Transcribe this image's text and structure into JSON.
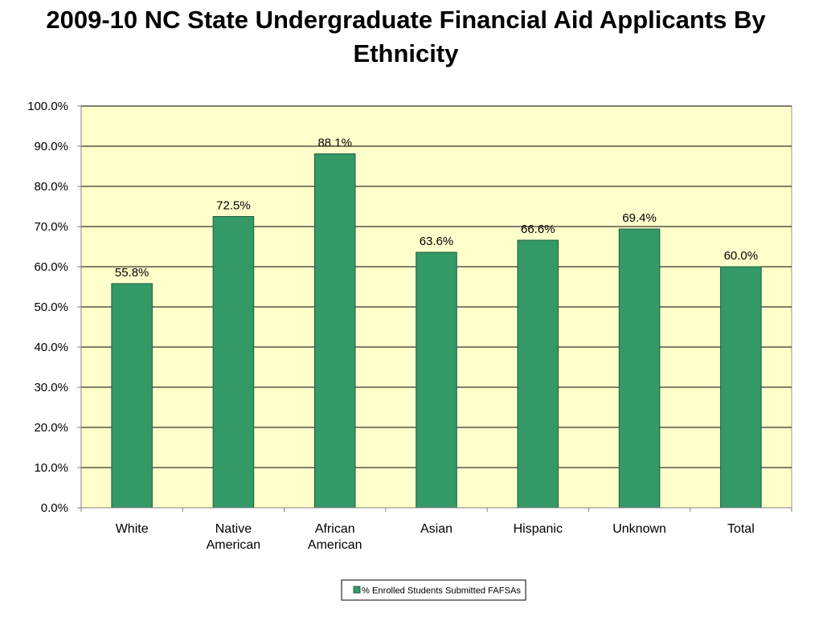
{
  "chart_data": {
    "type": "bar",
    "title": "2009-10 NC State Undergraduate Financial Aid Applicants By Ethnicity",
    "categories": [
      "White",
      "Native\nAmerican",
      "African\nAmerican",
      "Asian",
      "Hispanic",
      "Unknown",
      "Total"
    ],
    "series": [
      {
        "name": "% Enrolled Students Submitted FAFSAs",
        "values": [
          55.8,
          72.5,
          88.1,
          63.6,
          66.6,
          69.4,
          60.0
        ]
      }
    ],
    "data_labels": [
      "55.8%",
      "72.5%",
      "88.1%",
      "63.6%",
      "66.6%",
      "69.4%",
      "60.0%"
    ],
    "y_ticks": [
      "0.0%",
      "10.0%",
      "20.0%",
      "30.0%",
      "40.0%",
      "50.0%",
      "60.0%",
      "70.0%",
      "80.0%",
      "90.0%",
      "100.0%"
    ],
    "ylim": [
      0,
      100
    ],
    "xlabel": "",
    "ylabel": "",
    "grid": true,
    "legend_position": "bottom",
    "colors": {
      "bar": "#339966",
      "bar_edge": "#1f5c3d",
      "plot_background": "#ffffcc",
      "gridline": "#000000"
    }
  }
}
